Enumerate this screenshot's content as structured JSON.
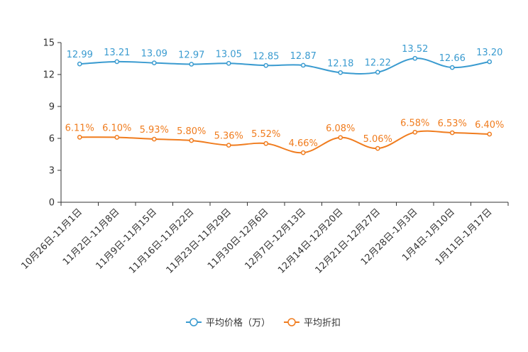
{
  "chart_data": {
    "type": "line",
    "title": "",
    "xlabel": "",
    "ylabel": "",
    "ylim": [
      0,
      15
    ],
    "yticks": [
      0,
      3,
      6,
      9,
      12,
      15
    ],
    "grid": false,
    "legend_position": "bottom-center",
    "categories": [
      "10月26日-11月1日",
      "11月2日-11月8日",
      "11月9日-11月15日",
      "11月16日-11月22日",
      "11月23日-11月29日",
      "11月30日-12月6日",
      "12月7日-12月13日",
      "12月14日-12月20日",
      "12月21日-12月27日",
      "12月28日-1月3日",
      "1月4日-1月10日",
      "1月11日-1月17日"
    ],
    "series": [
      {
        "name": "平均价格（万）",
        "color": "#3a9bd0",
        "values": [
          12.99,
          13.21,
          13.09,
          12.97,
          13.05,
          12.85,
          12.87,
          12.18,
          12.22,
          13.52,
          12.66,
          13.2
        ],
        "labels": [
          "12.99",
          "13.21",
          "13.09",
          "12.97",
          "13.05",
          "12.85",
          "12.87",
          "12.18",
          "12.22",
          "13.52",
          "12.66",
          "13.20"
        ]
      },
      {
        "name": "平均折扣",
        "color": "#f07c1e",
        "values": [
          6.11,
          6.1,
          5.93,
          5.8,
          5.36,
          5.52,
          4.66,
          6.08,
          5.06,
          6.58,
          6.53,
          6.4
        ],
        "labels": [
          "6.11%",
          "6.10%",
          "5.93%",
          "5.80%",
          "5.36%",
          "5.52%",
          "4.66%",
          "6.08%",
          "5.06%",
          "6.58%",
          "6.53%",
          "6.40%"
        ]
      }
    ]
  }
}
